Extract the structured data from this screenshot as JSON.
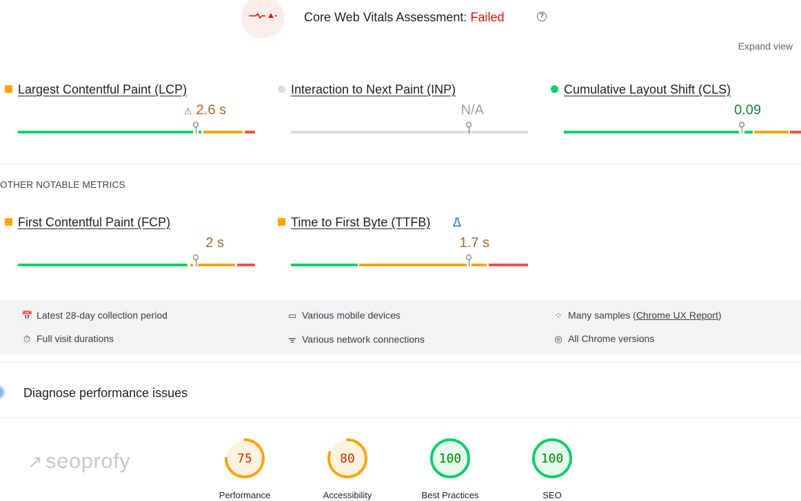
{
  "header": {
    "title_prefix": "Core Web Vitals Assessment: ",
    "status": "Failed",
    "help_icon": "help-circle-icon",
    "badge_icon": "heartbeat-warning-icon",
    "status_color": "#eb0f00"
  },
  "expand_view_label": "Expand view",
  "core_metrics": [
    {
      "title": "Largest Contentful Paint (LCP)",
      "value": "2.6 s",
      "status": "needs-improvement",
      "marker_color": "#ffa400",
      "has_warning_icon": true,
      "marker_position_fraction": 0.75
    },
    {
      "title": "Interaction to Next Paint (INP)",
      "value": "N/A",
      "status": "no-data",
      "marker_color": "#dadce0",
      "has_warning_icon": false,
      "marker_position_fraction": 0.75
    },
    {
      "title": "Cumulative Layout Shift (CLS)",
      "value": "0.09",
      "status": "good",
      "marker_color": "#0cce6b",
      "has_warning_icon": false,
      "marker_position_fraction": 0.75
    }
  ],
  "other_metrics_label": "OTHER NOTABLE METRICS",
  "other_metrics": [
    {
      "title": "First Contentful Paint (FCP)",
      "value": "2 s",
      "status": "needs-improvement",
      "marker_color": "#ffa400",
      "marker_position_fraction": 0.75
    },
    {
      "title": "Time to First Byte (TTFB)",
      "value": "1.7 s",
      "status": "needs-improvement",
      "marker_color": "#ffa400",
      "has_lab_icon": true,
      "marker_position_fraction": 0.75
    }
  ],
  "info": {
    "collection_period": "Latest 28-day collection period",
    "devices": "Various mobile devices",
    "samples_prefix": "Many samples (",
    "samples_link": "Chrome UX Report",
    "samples_suffix": ")",
    "visit_durations": "Full visit durations",
    "network": "Various network connections",
    "chrome_versions": "All Chrome versions"
  },
  "diagnose_title": "Diagnose performance issues",
  "logo_text": "seoprofy",
  "scores": [
    {
      "label": "Performance",
      "score": "75",
      "fraction": 0.75,
      "color": "#ffa400",
      "bg": "#fff3e0"
    },
    {
      "label": "Accessibility",
      "score": "80",
      "fraction": 0.8,
      "color": "#ffa400",
      "bg": "#fff3e0"
    },
    {
      "label": "Best Practices",
      "score": "100",
      "fraction": 1.0,
      "color": "#0cce6b",
      "bg": "#e6f9ee"
    },
    {
      "label": "SEO",
      "score": "100",
      "fraction": 1.0,
      "color": "#0cce6b",
      "bg": "#e6f9ee"
    }
  ]
}
